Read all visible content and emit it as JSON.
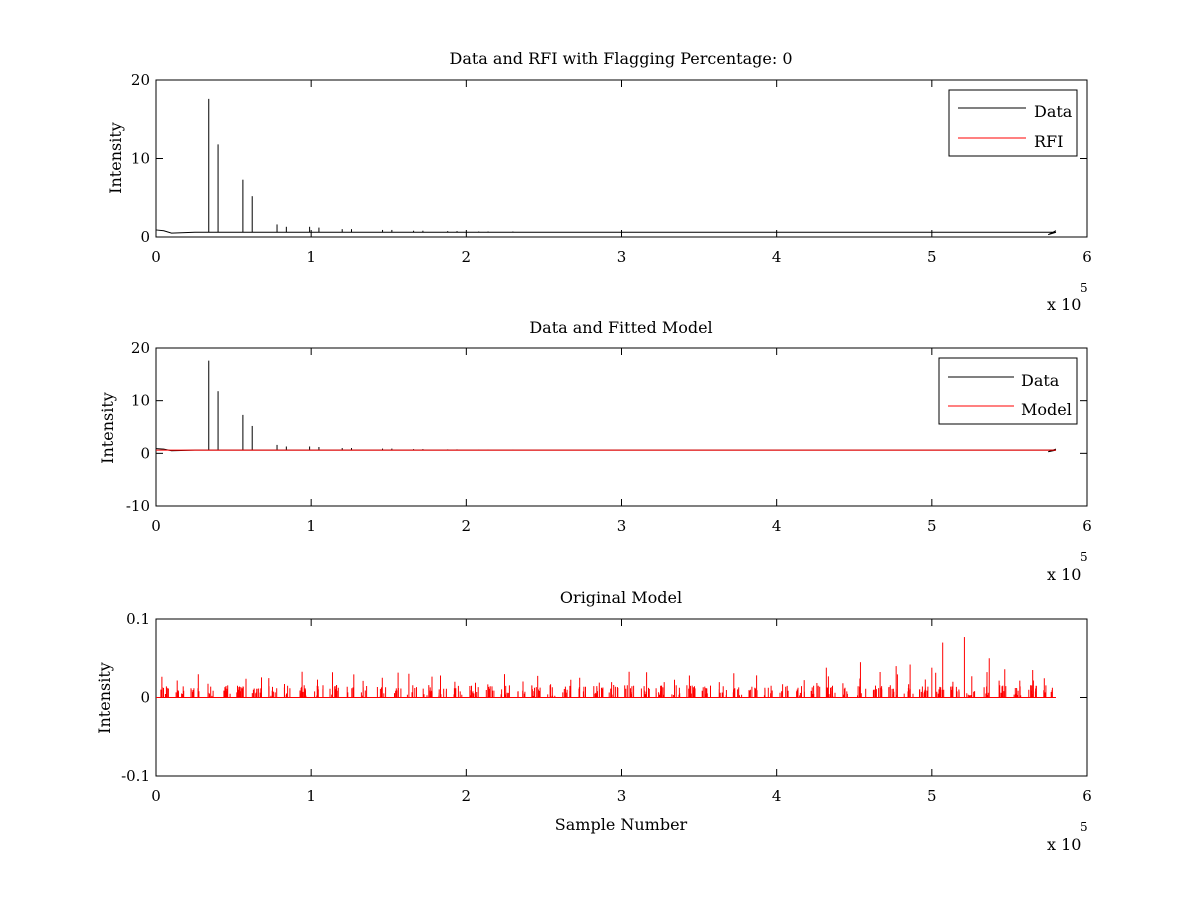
{
  "chart_data": [
    {
      "type": "line",
      "title": "Data and RFI with Flagging Percentage: 0",
      "xlabel": "",
      "ylabel": "Intensity",
      "xlim": [
        0,
        600000
      ],
      "ylim": [
        0,
        20
      ],
      "x_ticks": [
        "0",
        "1",
        "2",
        "3",
        "4",
        "5",
        "6"
      ],
      "y_ticks": [
        "0",
        "10",
        "20"
      ],
      "y_tick_values": [
        0,
        10,
        20
      ],
      "x_exponent_label": "x 10",
      "x_exponent": "5",
      "baseline": 0.6,
      "legend": [
        {
          "name": "Data",
          "color": "#000000"
        },
        {
          "name": "RFI",
          "color": "#ff0000"
        }
      ],
      "series": [
        {
          "name": "Data",
          "color": "#000000",
          "peaks": [
            {
              "x": 34000,
              "y": 17.6
            },
            {
              "x": 40000,
              "y": 11.8
            },
            {
              "x": 56000,
              "y": 7.3
            },
            {
              "x": 62000,
              "y": 5.2
            },
            {
              "x": 78000,
              "y": 1.6
            },
            {
              "x": 84000,
              "y": 1.3
            },
            {
              "x": 99000,
              "y": 1.3
            },
            {
              "x": 105000,
              "y": 1.2
            },
            {
              "x": 120000,
              "y": 1.0
            },
            {
              "x": 126000,
              "y": 1.0
            },
            {
              "x": 146000,
              "y": 0.9
            },
            {
              "x": 152000,
              "y": 0.9
            },
            {
              "x": 166000,
              "y": 0.8
            },
            {
              "x": 172000,
              "y": 0.8
            },
            {
              "x": 188000,
              "y": 0.75
            },
            {
              "x": 194000,
              "y": 0.75
            },
            {
              "x": 208000,
              "y": 0.7
            },
            {
              "x": 214000,
              "y": 0.7
            },
            {
              "x": 230000,
              "y": 0.7
            }
          ]
        },
        {
          "name": "RFI",
          "color": "#ff0000",
          "peaks": []
        }
      ]
    },
    {
      "type": "line",
      "title": "Data and Fitted Model",
      "xlabel": "",
      "ylabel": "Intensity",
      "xlim": [
        0,
        600000
      ],
      "ylim": [
        -10,
        20
      ],
      "x_ticks": [
        "0",
        "1",
        "2",
        "3",
        "4",
        "5",
        "6"
      ],
      "y_ticks": [
        "-10",
        "0",
        "10",
        "20"
      ],
      "y_tick_values": [
        -10,
        0,
        10,
        20
      ],
      "x_exponent_label": "x 10",
      "x_exponent": "5",
      "baseline": 0.6,
      "legend": [
        {
          "name": "Data",
          "color": "#000000"
        },
        {
          "name": "Model",
          "color": "#ff0000"
        }
      ],
      "series": [
        {
          "name": "Data",
          "color": "#000000",
          "peaks": [
            {
              "x": 34000,
              "y": 17.6
            },
            {
              "x": 40000,
              "y": 11.8
            },
            {
              "x": 56000,
              "y": 7.3
            },
            {
              "x": 62000,
              "y": 5.2
            },
            {
              "x": 78000,
              "y": 1.6
            },
            {
              "x": 84000,
              "y": 1.3
            },
            {
              "x": 99000,
              "y": 1.3
            },
            {
              "x": 105000,
              "y": 1.2
            },
            {
              "x": 120000,
              "y": 1.0
            },
            {
              "x": 126000,
              "y": 1.0
            },
            {
              "x": 146000,
              "y": 0.9
            },
            {
              "x": 152000,
              "y": 0.9
            },
            {
              "x": 166000,
              "y": 0.8
            },
            {
              "x": 172000,
              "y": 0.8
            },
            {
              "x": 188000,
              "y": 0.75
            },
            {
              "x": 194000,
              "y": 0.75
            },
            {
              "x": 208000,
              "y": 0.7
            },
            {
              "x": 214000,
              "y": 0.7
            },
            {
              "x": 230000,
              "y": 0.7
            }
          ]
        },
        {
          "name": "Model",
          "color": "#ff0000",
          "constant": 0.6
        }
      ]
    },
    {
      "type": "line",
      "title": "Original Model",
      "xlabel": "Sample Number",
      "ylabel": "Intensity",
      "xlim": [
        0,
        600000
      ],
      "ylim": [
        -0.1,
        0.1
      ],
      "x_ticks": [
        "0",
        "1",
        "2",
        "3",
        "4",
        "5",
        "6"
      ],
      "y_ticks": [
        "-0.1",
        "0",
        "0.1"
      ],
      "y_tick_values": [
        -0.1,
        0,
        0.1
      ],
      "x_exponent_label": "x 10",
      "x_exponent": "5",
      "series": [
        {
          "name": "Original Model",
          "color": "#ff0000",
          "x_end": 580000,
          "cluster_spacing": 10000,
          "typical_peak_range": [
            0.01,
            0.03
          ],
          "notable_peaks": [
            {
              "x": 432000,
              "y": 0.038
            },
            {
              "x": 454000,
              "y": 0.045
            },
            {
              "x": 477000,
              "y": 0.04
            },
            {
              "x": 486000,
              "y": 0.042
            },
            {
              "x": 500000,
              "y": 0.038
            },
            {
              "x": 507000,
              "y": 0.07
            },
            {
              "x": 521000,
              "y": 0.077
            },
            {
              "x": 537000,
              "y": 0.05
            },
            {
              "x": 547000,
              "y": 0.036
            },
            {
              "x": 565000,
              "y": 0.035
            }
          ]
        }
      ]
    }
  ]
}
